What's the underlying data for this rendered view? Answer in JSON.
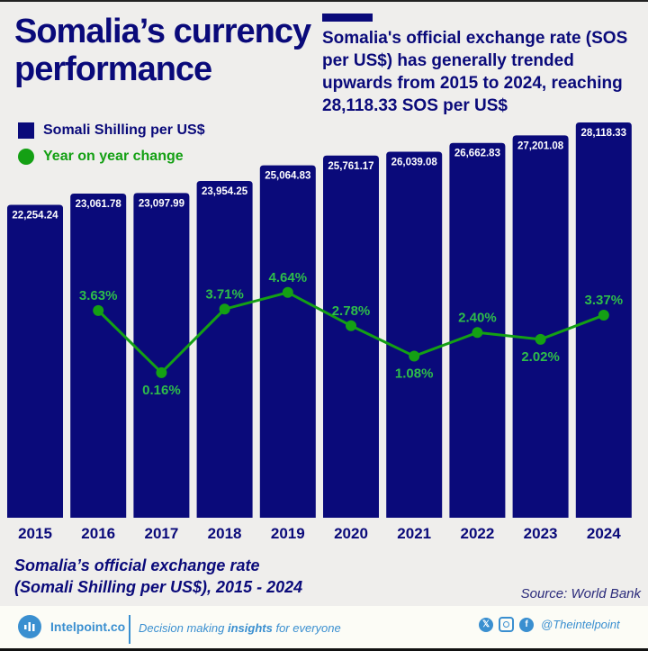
{
  "header": {
    "title_line1": "Somalia’s currency",
    "title_line2": "performance",
    "subtitle": "Somalia's official exchange rate (SOS per US$) has generally trended upwards from 2015 to 2024, reaching 28,118.33 SOS per US$"
  },
  "legend": {
    "items": [
      {
        "label": "Somali Shilling per US$",
        "color": "#0a0a7a",
        "shape": "square"
      },
      {
        "label": "Year on year change",
        "color": "#14a014",
        "shape": "circle"
      }
    ]
  },
  "chart_data": {
    "type": "bar",
    "title": "Somalia’s official exchange rate (Somali Shilling per US$), 2015 - 2024",
    "categories": [
      "2015",
      "2016",
      "2017",
      "2018",
      "2019",
      "2020",
      "2021",
      "2022",
      "2023",
      "2024"
    ],
    "series": [
      {
        "name": "Somali Shilling per US$",
        "type": "bar",
        "color": "#0a0a7a",
        "values": [
          22254.24,
          23061.78,
          23097.99,
          23954.25,
          25064.83,
          25761.17,
          26039.08,
          26662.83,
          27201.08,
          28118.33
        ],
        "labels": [
          "22,254.24",
          "23,061.78",
          "23,097.99",
          "23,954.25",
          "25,064.83",
          "25,761.17",
          "26,039.08",
          "26,662.83",
          "27,201.08",
          "28,118.33"
        ]
      },
      {
        "name": "Year on year change",
        "type": "line",
        "color": "#14a014",
        "label_color": "#2ebd4a",
        "unit": "%",
        "values": [
          null,
          3.63,
          0.16,
          3.71,
          4.64,
          2.78,
          1.08,
          2.4,
          2.02,
          3.37
        ],
        "labels": [
          null,
          "3.63%",
          "0.16%",
          "3.71%",
          "4.64%",
          "2.78%",
          "1.08%",
          "2.40%",
          "2.02%",
          "3.37%"
        ],
        "label_position": [
          "",
          "above",
          "below",
          "above",
          "above",
          "above",
          "below",
          "above",
          "below",
          "above"
        ]
      }
    ],
    "xlabel": "",
    "ylabel": "",
    "ylim": [
      0,
      28118.33
    ],
    "grid": false,
    "legend_position": "top-left"
  },
  "caption": {
    "line1": "Somalia’s official exchange rate",
    "line2": "(Somali Shilling per US$), 2015 - 2024"
  },
  "source": "Source: World Bank",
  "footer": {
    "brand": "Intelpoint.co",
    "tagline_pre": "Decision making ",
    "tagline_bold": "insights",
    "tagline_post": " for everyone",
    "social_icons": [
      "x-icon",
      "instagram-icon",
      "facebook-icon"
    ],
    "handle": "@Theintelpoint"
  }
}
